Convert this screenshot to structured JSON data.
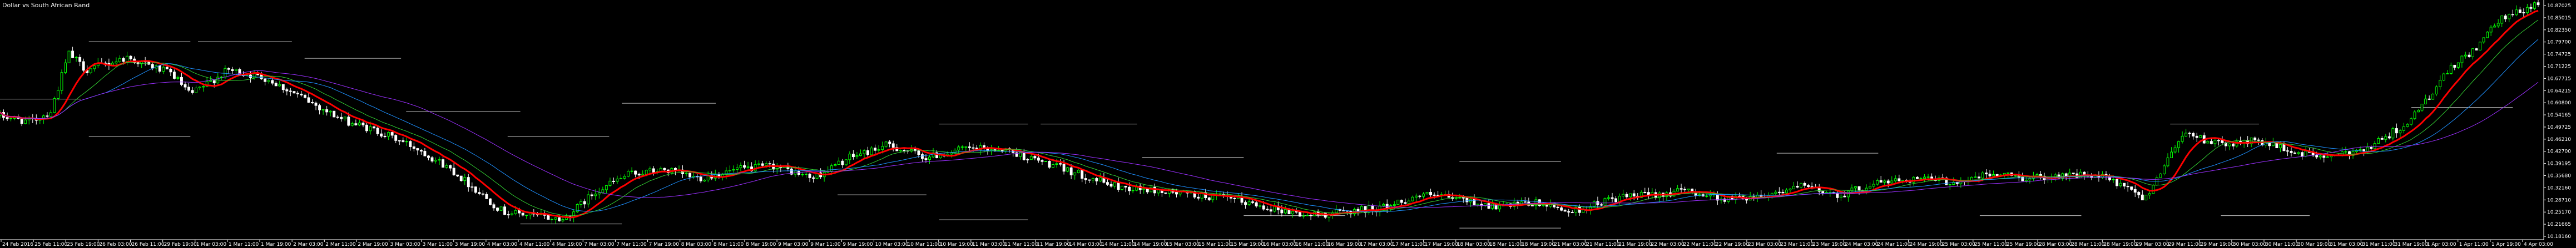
{
  "window": {
    "title": "Dollar vs South African Rand"
  },
  "colors": {
    "background": "#000000",
    "candle_up": "#00ff00",
    "candle_down": "#ffffff",
    "ma_fast": "#ff0000",
    "ma_medium": "#32cd32",
    "ma_slow": "#1e90ff",
    "ma_slowest": "#9b30ff",
    "levels": "#c0c0c0",
    "axis": "#ffffff"
  },
  "chart_data": {
    "type": "candlestick",
    "title": "Dollar vs South African Rand",
    "ylim": [
      10.1975,
      10.7575
    ],
    "price_ticks": [
      "10.87025",
      "10.85015",
      "10.82350",
      "10.79700",
      "10.74725",
      "10.71225",
      "10.67715",
      "10.64215",
      "10.60800",
      "10.54165",
      "10.49725",
      "10.46210",
      "10.42700",
      "10.39195",
      "10.35680",
      "10.32160",
      "10.28710",
      "10.25170",
      "10.21665",
      "10.18160"
    ],
    "time_ticks": [
      "24 Feb 2016",
      "25 Feb 11:00",
      "25 Feb 19:00",
      "26 Feb 03:00",
      "26 Feb 11:00",
      "29 Feb 19:00",
      "1 Mar 03:00",
      "1 Mar 11:00",
      "1 Mar 19:00",
      "2 Mar 03:00",
      "2 Mar 11:00",
      "2 Mar 19:00",
      "3 Mar 03:00",
      "3 Mar 11:00",
      "3 Mar 19:00",
      "4 Mar 03:00",
      "4 Mar 11:00",
      "4 Mar 19:00",
      "7 Mar 03:00",
      "7 Mar 11:00",
      "7 Mar 19:00",
      "8 Mar 03:00",
      "8 Mar 11:00",
      "8 Mar 19:00",
      "9 Mar 03:00",
      "9 Mar 11:00",
      "9 Mar 19:00",
      "10 Mar 03:00",
      "10 Mar 11:00",
      "10 Mar 19:00",
      "11 Mar 03:00",
      "11 Mar 11:00",
      "11 Mar 19:00",
      "14 Mar 03:00",
      "14 Mar 11:00",
      "14 Mar 19:00",
      "15 Mar 03:00",
      "15 Mar 11:00",
      "15 Mar 19:00",
      "16 Mar 03:00",
      "16 Mar 11:00",
      "16 Mar 19:00",
      "17 Mar 03:00",
      "17 Mar 11:00",
      "17 Mar 19:00",
      "18 Mar 03:00",
      "18 Mar 11:00",
      "18 Mar 19:00",
      "21 Mar 03:00",
      "21 Mar 11:00",
      "21 Mar 19:00",
      "22 Mar 03:00",
      "22 Mar 11:00",
      "22 Mar 19:00",
      "23 Mar 03:00",
      "23 Mar 11:00",
      "23 Mar 19:00",
      "24 Mar 03:00",
      "24 Mar 11:00",
      "24 Mar 19:00",
      "25 Mar 03:00",
      "25 Mar 11:00",
      "25 Mar 19:00",
      "28 Mar 03:00",
      "28 Mar 11:00",
      "28 Mar 19:00",
      "29 Mar 03:00",
      "29 Mar 11:00",
      "29 Mar 19:00",
      "30 Mar 03:00",
      "30 Mar 11:00",
      "30 Mar 19:00",
      "31 Mar 03:00",
      "31 Mar 11:00",
      "31 Mar 19:00",
      "1 Apr 03:00",
      "1 Apr 11:00",
      "1 Apr 19:00",
      "4 Apr 03:00"
    ],
    "anchors": [
      {
        "t": 0.0,
        "p": 10.49
      },
      {
        "t": 0.012,
        "p": 10.475
      },
      {
        "t": 0.02,
        "p": 10.5
      },
      {
        "t": 0.027,
        "p": 10.64
      },
      {
        "t": 0.034,
        "p": 10.6
      },
      {
        "t": 0.05,
        "p": 10.63
      },
      {
        "t": 0.068,
        "p": 10.59
      },
      {
        "t": 0.075,
        "p": 10.54
      },
      {
        "t": 0.09,
        "p": 10.6
      },
      {
        "t": 0.105,
        "p": 10.58
      },
      {
        "t": 0.12,
        "p": 10.53
      },
      {
        "t": 0.135,
        "p": 10.48
      },
      {
        "t": 0.15,
        "p": 10.45
      },
      {
        "t": 0.165,
        "p": 10.41
      },
      {
        "t": 0.178,
        "p": 10.36
      },
      {
        "t": 0.19,
        "p": 10.3
      },
      {
        "t": 0.198,
        "p": 10.26
      },
      {
        "t": 0.21,
        "p": 10.25
      },
      {
        "t": 0.222,
        "p": 10.24
      },
      {
        "t": 0.235,
        "p": 10.31
      },
      {
        "t": 0.248,
        "p": 10.35
      },
      {
        "t": 0.262,
        "p": 10.36
      },
      {
        "t": 0.275,
        "p": 10.34
      },
      {
        "t": 0.29,
        "p": 10.36
      },
      {
        "t": 0.305,
        "p": 10.37
      },
      {
        "t": 0.32,
        "p": 10.34
      },
      {
        "t": 0.335,
        "p": 10.39
      },
      {
        "t": 0.35,
        "p": 10.42
      },
      {
        "t": 0.365,
        "p": 10.39
      },
      {
        "t": 0.38,
        "p": 10.41
      },
      {
        "t": 0.395,
        "p": 10.41
      },
      {
        "t": 0.41,
        "p": 10.38
      },
      {
        "t": 0.425,
        "p": 10.35
      },
      {
        "t": 0.44,
        "p": 10.32
      },
      {
        "t": 0.455,
        "p": 10.31
      },
      {
        "t": 0.47,
        "p": 10.3
      },
      {
        "t": 0.485,
        "p": 10.29
      },
      {
        "t": 0.5,
        "p": 10.27
      },
      {
        "t": 0.515,
        "p": 10.25
      },
      {
        "t": 0.53,
        "p": 10.26
      },
      {
        "t": 0.545,
        "p": 10.27
      },
      {
        "t": 0.56,
        "p": 10.3
      },
      {
        "t": 0.575,
        "p": 10.29
      },
      {
        "t": 0.59,
        "p": 10.27
      },
      {
        "t": 0.605,
        "p": 10.28
      },
      {
        "t": 0.62,
        "p": 10.26
      },
      {
        "t": 0.635,
        "p": 10.29
      },
      {
        "t": 0.65,
        "p": 10.3
      },
      {
        "t": 0.665,
        "p": 10.31
      },
      {
        "t": 0.68,
        "p": 10.29
      },
      {
        "t": 0.695,
        "p": 10.3
      },
      {
        "t": 0.71,
        "p": 10.32
      },
      {
        "t": 0.725,
        "p": 10.3
      },
      {
        "t": 0.74,
        "p": 10.33
      },
      {
        "t": 0.755,
        "p": 10.34
      },
      {
        "t": 0.77,
        "p": 10.33
      },
      {
        "t": 0.785,
        "p": 10.35
      },
      {
        "t": 0.8,
        "p": 10.34
      },
      {
        "t": 0.815,
        "p": 10.35
      },
      {
        "t": 0.83,
        "p": 10.34
      },
      {
        "t": 0.845,
        "p": 10.29
      },
      {
        "t": 0.86,
        "p": 10.45
      },
      {
        "t": 0.875,
        "p": 10.42
      },
      {
        "t": 0.89,
        "p": 10.43
      },
      {
        "t": 0.905,
        "p": 10.4
      },
      {
        "t": 0.92,
        "p": 10.39
      },
      {
        "t": 0.935,
        "p": 10.42
      },
      {
        "t": 0.95,
        "p": 10.48
      },
      {
        "t": 0.965,
        "p": 10.6
      },
      {
        "t": 0.975,
        "p": 10.65
      },
      {
        "t": 0.985,
        "p": 10.72
      },
      {
        "t": 1.0,
        "p": 10.76
      }
    ],
    "series": [
      {
        "name": "",
        "type": "ma",
        "period": 10,
        "color_key": "ma_fast",
        "width": 3
      },
      {
        "name": "",
        "type": "ma",
        "period": 18,
        "color_key": "ma_medium",
        "width": 1
      },
      {
        "name": "",
        "type": "ma",
        "period": 30,
        "color_key": "ma_slow",
        "width": 1
      },
      {
        "name": "",
        "type": "ma",
        "period": 55,
        "color_key": "ma_slowest",
        "width": 1
      }
    ],
    "levels": [
      {
        "p": 10.668,
        "t0": 0.035,
        "t1": 0.075
      },
      {
        "p": 10.668,
        "t0": 0.078,
        "t1": 0.115
      },
      {
        "p": 10.628,
        "t0": 0.12,
        "t1": 0.158
      },
      {
        "p": 10.53,
        "t0": 0.0,
        "t1": 0.032
      },
      {
        "p": 10.44,
        "t0": 0.035,
        "t1": 0.075
      },
      {
        "p": 10.5,
        "t0": 0.16,
        "t1": 0.205
      },
      {
        "p": 10.44,
        "t0": 0.2,
        "t1": 0.24
      },
      {
        "p": 10.52,
        "t0": 0.245,
        "t1": 0.282
      },
      {
        "p": 10.23,
        "t0": 0.205,
        "t1": 0.245
      },
      {
        "p": 10.17,
        "t0": 0.245,
        "t1": 0.282
      },
      {
        "p": 10.47,
        "t0": 0.37,
        "t1": 0.405
      },
      {
        "p": 10.47,
        "t0": 0.41,
        "t1": 0.448
      },
      {
        "p": 10.3,
        "t0": 0.33,
        "t1": 0.365
      },
      {
        "p": 10.24,
        "t0": 0.37,
        "t1": 0.405
      },
      {
        "p": 10.39,
        "t0": 0.45,
        "t1": 0.49
      },
      {
        "p": 10.25,
        "t0": 0.49,
        "t1": 0.53
      },
      {
        "p": 10.38,
        "t0": 0.575,
        "t1": 0.615
      },
      {
        "p": 10.22,
        "t0": 0.575,
        "t1": 0.615
      },
      {
        "p": 10.4,
        "t0": 0.7,
        "t1": 0.74
      },
      {
        "p": 10.25,
        "t0": 0.78,
        "t1": 0.82
      },
      {
        "p": 10.47,
        "t0": 0.855,
        "t1": 0.89
      },
      {
        "p": 10.25,
        "t0": 0.875,
        "t1": 0.91
      },
      {
        "p": 10.51,
        "t0": 0.95,
        "t1": 0.99
      }
    ]
  }
}
